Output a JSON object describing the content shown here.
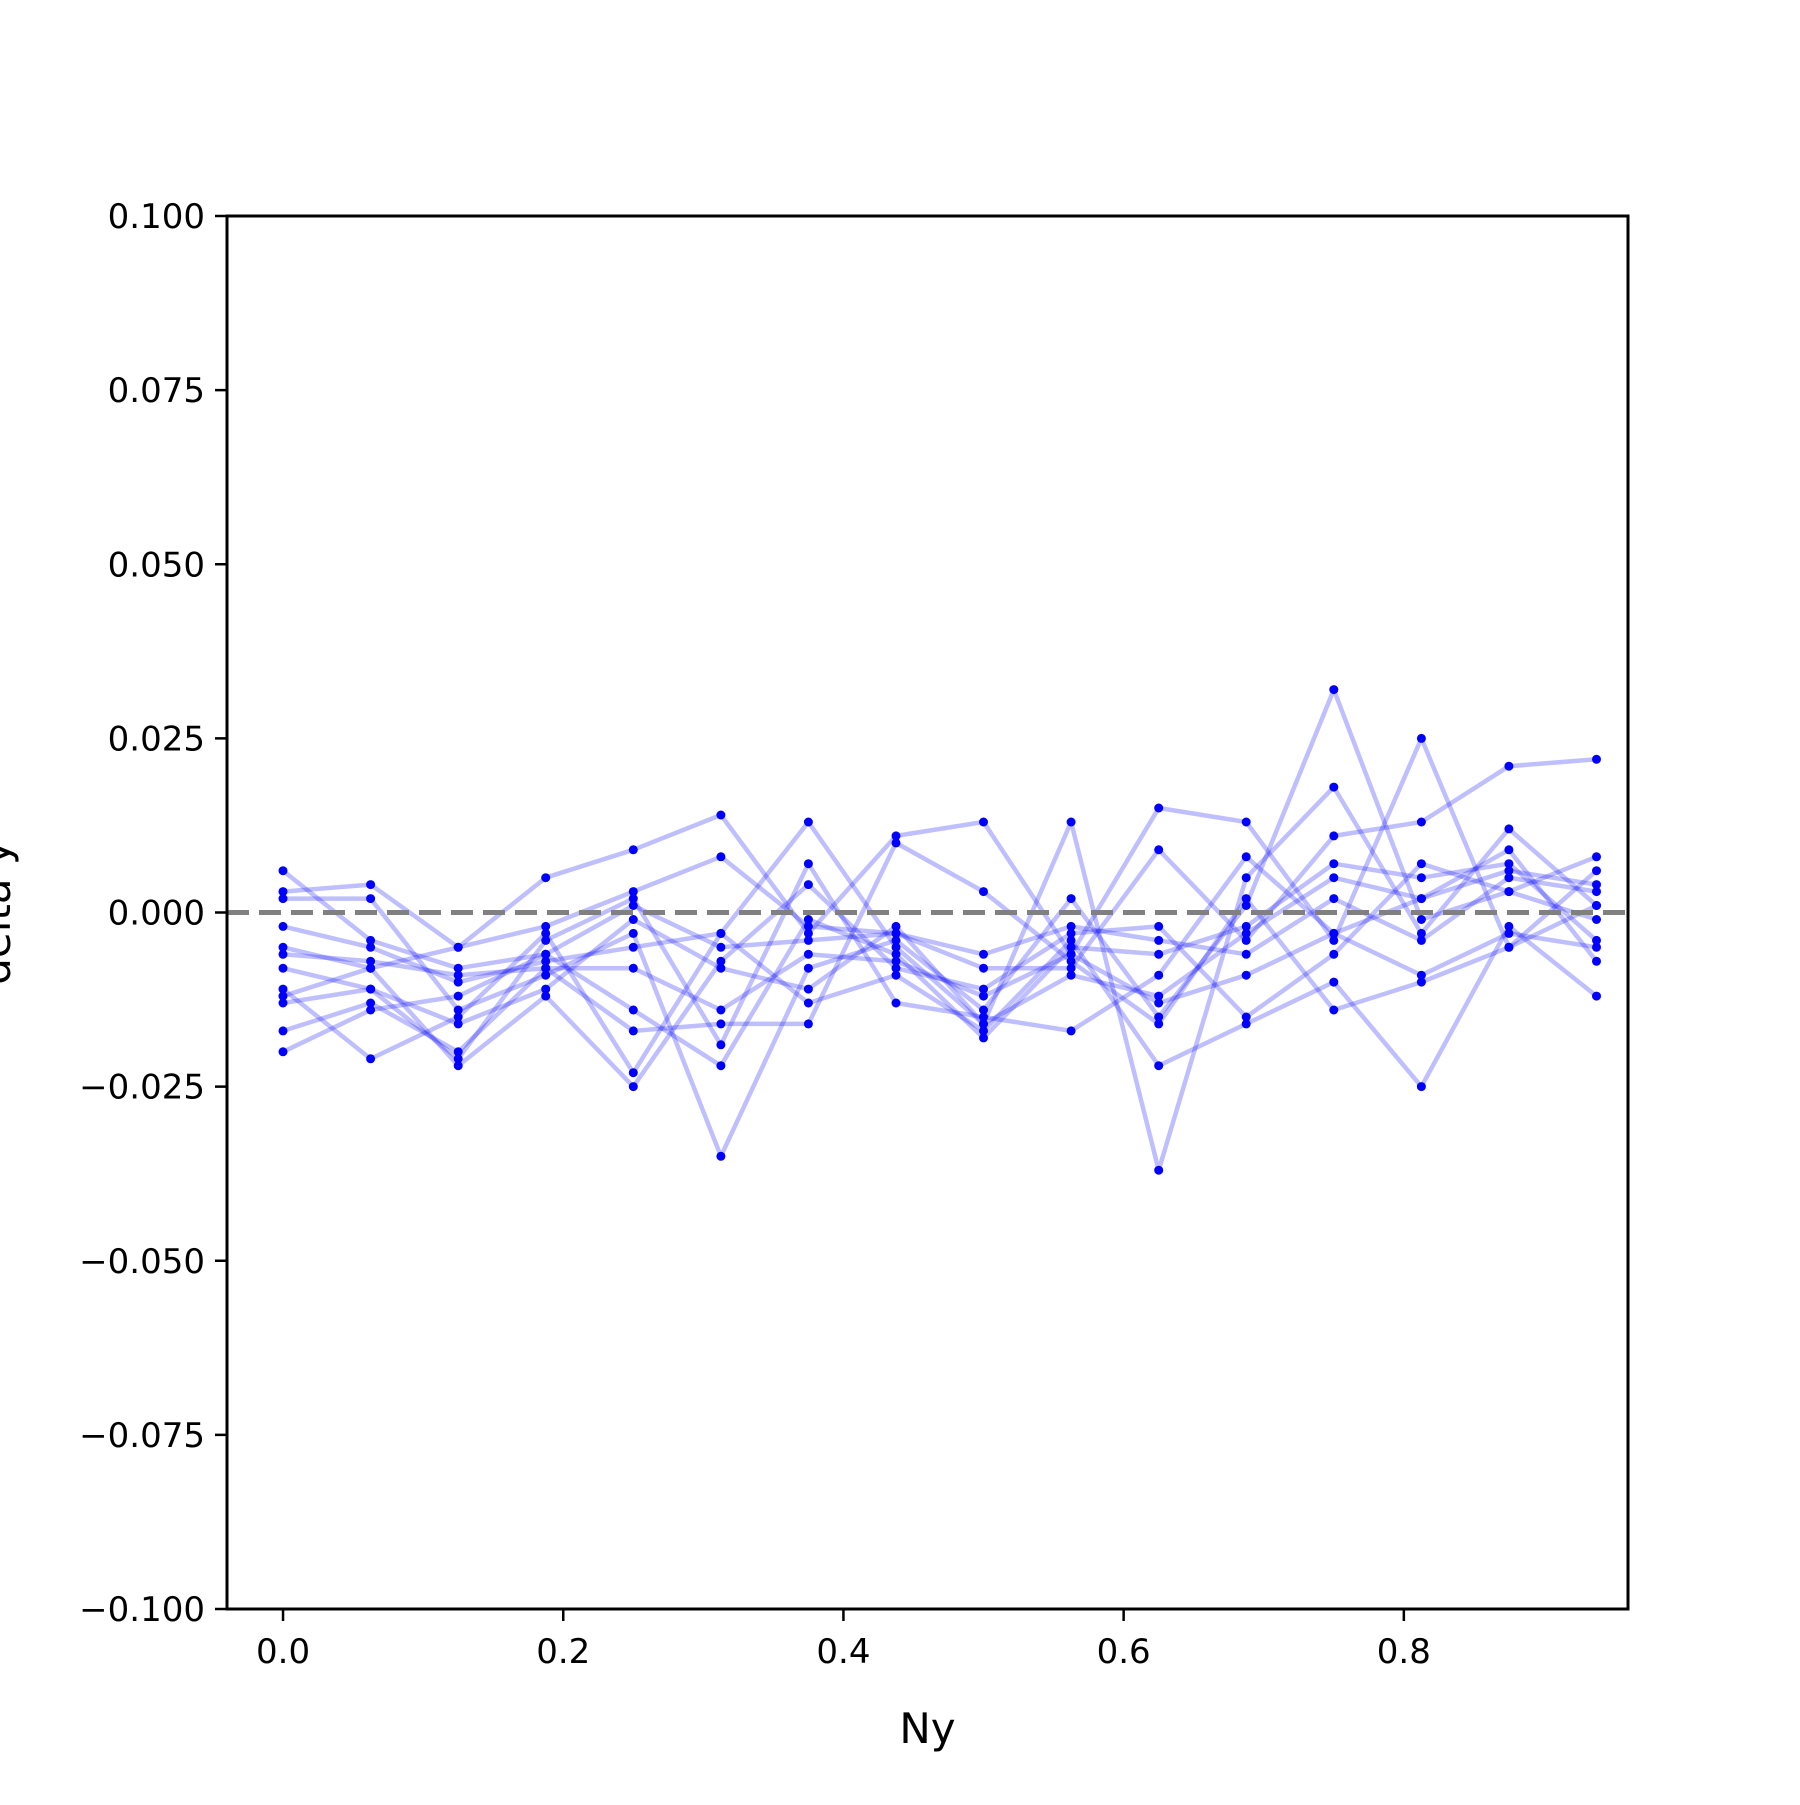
{
  "chart_data": {
    "type": "line",
    "title": "",
    "xlabel": "Ny",
    "ylabel": "delta y",
    "xlim": [
      -0.04,
      0.96
    ],
    "ylim": [
      -0.1,
      0.1
    ],
    "x_ticks": [
      {
        "value": 0.0,
        "label": "0.0"
      },
      {
        "value": 0.2,
        "label": "0.2"
      },
      {
        "value": 0.4,
        "label": "0.4"
      },
      {
        "value": 0.6,
        "label": "0.6"
      },
      {
        "value": 0.8,
        "label": "0.8"
      }
    ],
    "y_ticks": [
      {
        "value": 0.1,
        "label": "0.100"
      },
      {
        "value": 0.075,
        "label": "0.075"
      },
      {
        "value": 0.05,
        "label": "0.050"
      },
      {
        "value": 0.025,
        "label": "0.025"
      },
      {
        "value": 0.0,
        "label": "0.000"
      },
      {
        "value": -0.025,
        "label": "−0.025"
      },
      {
        "value": -0.05,
        "label": "−0.050"
      },
      {
        "value": -0.075,
        "label": "−0.075"
      },
      {
        "value": -0.1,
        "label": "−0.100"
      }
    ],
    "reference_line": {
      "y": 0.0,
      "style": "dashed",
      "color": "#808080"
    },
    "line_color": "#0000ff",
    "line_opacity": 0.25,
    "marker_color": "#0000ff",
    "x": [
      0.0,
      0.0625,
      0.125,
      0.1875,
      0.25,
      0.3125,
      0.375,
      0.4375,
      0.5,
      0.5625,
      0.625,
      0.6875,
      0.75,
      0.8125,
      0.875,
      0.9375
    ],
    "series": [
      {
        "values": [
          0.006,
          -0.004,
          -0.008,
          -0.006,
          0.001,
          -0.005,
          -0.004,
          -0.003,
          -0.006,
          -0.002,
          -0.004,
          -0.006,
          0.002,
          -0.004,
          0.005,
          0.003
        ]
      },
      {
        "values": [
          0.003,
          0.004,
          -0.005,
          0.005,
          0.009,
          0.014,
          -0.003,
          0.011,
          0.013,
          -0.006,
          0.015,
          0.013,
          -0.004,
          0.025,
          -0.005,
          0.001
        ]
      },
      {
        "values": [
          0.002,
          0.002,
          -0.014,
          -0.009,
          -0.003,
          -0.035,
          -0.008,
          -0.004,
          -0.014,
          0.002,
          -0.015,
          0.001,
          0.032,
          -0.001,
          0.003,
          0.008
        ]
      },
      {
        "values": [
          -0.002,
          -0.005,
          -0.01,
          -0.007,
          -0.005,
          -0.003,
          0.013,
          -0.005,
          -0.016,
          0.013,
          -0.037,
          0.005,
          0.018,
          -0.003,
          0.012,
          0.001
        ]
      },
      {
        "values": [
          -0.005,
          -0.008,
          -0.005,
          -0.002,
          0.003,
          0.008,
          -0.002,
          -0.003,
          -0.008,
          -0.008,
          0.009,
          -0.004,
          0.011,
          0.013,
          0.021,
          0.022
        ]
      },
      {
        "values": [
          -0.006,
          -0.007,
          -0.009,
          -0.008,
          -0.008,
          -0.014,
          -0.006,
          -0.007,
          -0.012,
          -0.006,
          -0.013,
          -0.009,
          -0.003,
          -0.009,
          -0.003,
          -0.005
        ]
      },
      {
        "values": [
          -0.008,
          -0.011,
          -0.016,
          -0.011,
          -0.001,
          -0.008,
          -0.011,
          -0.002,
          -0.016,
          -0.009,
          -0.012,
          -0.003,
          0.005,
          0.002,
          0.009,
          -0.007
        ]
      },
      {
        "values": [
          -0.011,
          -0.021,
          -0.015,
          -0.003,
          -0.023,
          -0.003,
          -0.013,
          -0.009,
          -0.017,
          -0.004,
          -0.022,
          -0.016,
          -0.01,
          -0.025,
          -0.002,
          -0.012
        ]
      },
      {
        "values": [
          -0.012,
          -0.008,
          -0.022,
          -0.012,
          -0.025,
          -0.007,
          0.004,
          -0.008,
          -0.011,
          -0.003,
          -0.002,
          -0.015,
          -0.006,
          0.007,
          0.003,
          -0.001
        ]
      },
      {
        "values": [
          -0.017,
          -0.013,
          -0.02,
          -0.008,
          -0.017,
          -0.016,
          -0.016,
          0.01,
          0.003,
          -0.007,
          -0.016,
          0.002,
          -0.014,
          -0.01,
          -0.005,
          0.006
        ]
      },
      {
        "values": [
          -0.013,
          -0.011,
          -0.021,
          -0.004,
          0.002,
          -0.019,
          0.007,
          -0.013,
          -0.015,
          -0.017,
          -0.009,
          0.008,
          -0.003,
          0.002,
          0.006,
          0.004
        ]
      },
      {
        "values": [
          -0.02,
          -0.014,
          -0.012,
          -0.006,
          -0.014,
          -0.022,
          -0.001,
          -0.006,
          -0.018,
          -0.005,
          -0.006,
          -0.002,
          0.007,
          0.005,
          0.007,
          -0.004
        ]
      }
    ]
  }
}
